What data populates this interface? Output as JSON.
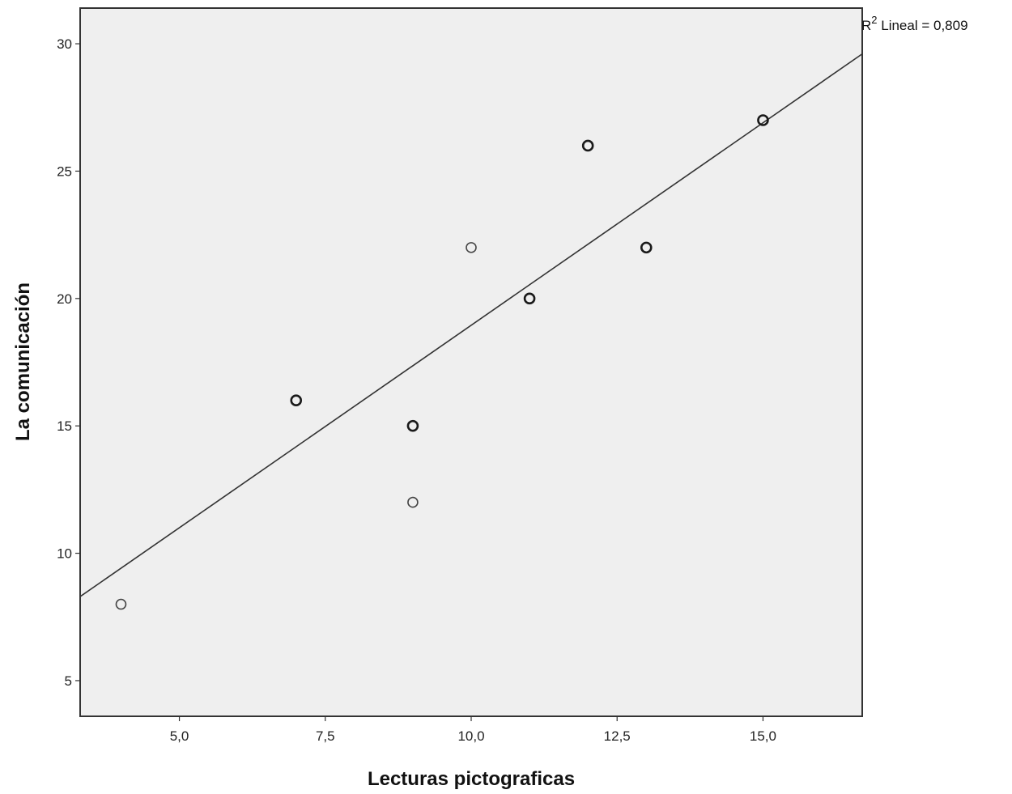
{
  "chart_data": {
    "type": "scatter",
    "title": "",
    "xlabel": "Lecturas pictograficas",
    "ylabel": "La comunicación",
    "xlim": [
      3.3,
      16.7
    ],
    "ylim": [
      3.6,
      31.4
    ],
    "x_ticks": [
      5.0,
      7.5,
      10.0,
      12.5,
      15.0
    ],
    "x_tick_labels": [
      "5,0",
      "7,5",
      "10,0",
      "12,5",
      "15,0"
    ],
    "y_ticks": [
      5,
      10,
      15,
      20,
      25,
      30
    ],
    "y_tick_labels": [
      "5",
      "10",
      "15",
      "20",
      "25",
      "30"
    ],
    "grid": false,
    "background": "#efefef",
    "points": [
      {
        "x": 4,
        "y": 8,
        "overlap": false
      },
      {
        "x": 7,
        "y": 16,
        "overlap": true
      },
      {
        "x": 9,
        "y": 15,
        "overlap": true
      },
      {
        "x": 9,
        "y": 12,
        "overlap": false
      },
      {
        "x": 10,
        "y": 22,
        "overlap": false
      },
      {
        "x": 11,
        "y": 20,
        "overlap": true
      },
      {
        "x": 12,
        "y": 26,
        "overlap": true
      },
      {
        "x": 13,
        "y": 22,
        "overlap": true
      },
      {
        "x": 15,
        "y": 27,
        "overlap": true
      }
    ],
    "fit_line": {
      "type": "linear",
      "x": [
        3.3,
        16.7
      ],
      "y": [
        8.3,
        29.6
      ]
    },
    "annotation": {
      "prefix": "R",
      "superscript": "2",
      "text": " Lineal = 0,809"
    }
  }
}
